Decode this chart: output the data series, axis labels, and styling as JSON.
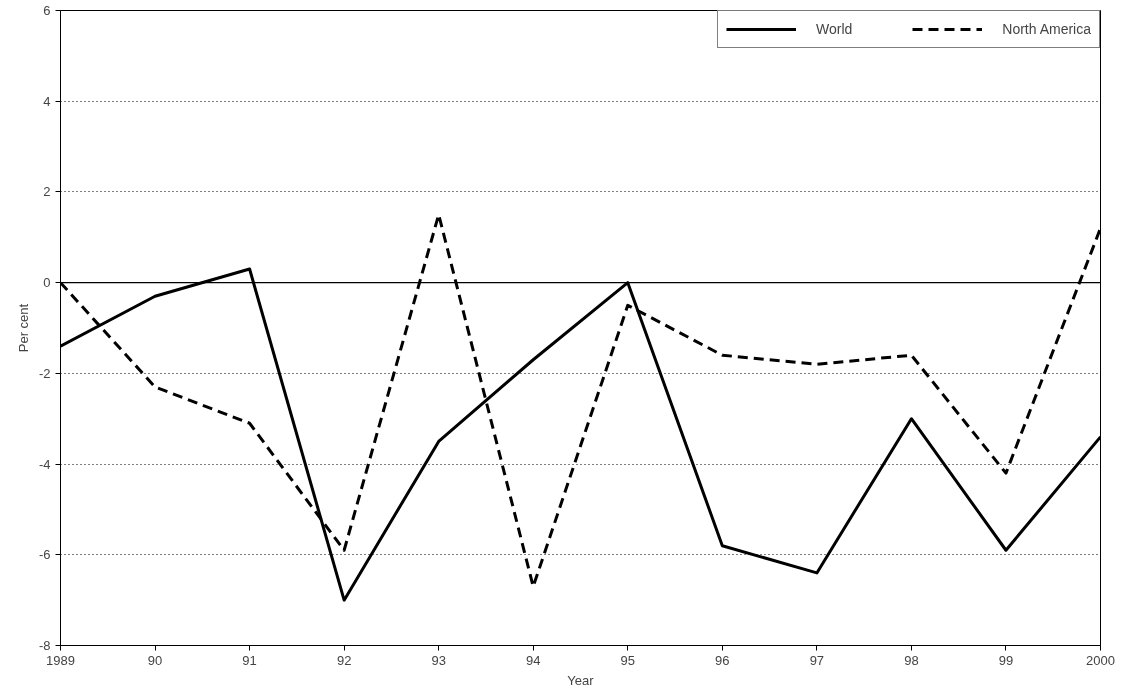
{
  "chart_data": {
    "type": "line",
    "xlabel": "Year",
    "ylabel": "Per cent",
    "x": [
      1989,
      1990,
      1991,
      1992,
      1993,
      1994,
      1995,
      1996,
      1997,
      1998,
      1999,
      2000
    ],
    "series": [
      {
        "name": "World",
        "color": "#000000",
        "line_style": "solid",
        "values": [
          -1.4,
          -0.3,
          0.3,
          -7.0,
          -3.5,
          -1.7,
          0.0,
          -5.8,
          -6.4,
          -3.0,
          -5.9,
          -3.4
        ]
      },
      {
        "name": "North America",
        "color": "#000000",
        "line_style": "dashed",
        "values": [
          0.0,
          -2.3,
          -3.1,
          -5.9,
          1.5,
          -6.7,
          -0.5,
          -1.6,
          -1.8,
          -1.6,
          -4.2,
          1.2
        ]
      }
    ],
    "xlim": [
      1989,
      2000
    ],
    "xticks": [
      1989,
      {
        "value": 1990,
        "label": "90"
      },
      {
        "value": 1991,
        "label": "91"
      },
      {
        "value": 1992,
        "label": "92"
      },
      {
        "value": 1993,
        "label": "93"
      },
      {
        "value": 1994,
        "label": "94"
      },
      {
        "value": 1995,
        "label": "95"
      },
      {
        "value": 1996,
        "label": "96"
      },
      {
        "value": 1997,
        "label": "97"
      },
      {
        "value": 1998,
        "label": "98"
      },
      {
        "value": 1999,
        "label": "99"
      },
      {
        "value": 2000,
        "label": "2000"
      }
    ],
    "ylim": [
      -8,
      6
    ],
    "yticks": [
      -8,
      -6,
      -4,
      -2,
      0,
      2,
      4,
      6
    ],
    "grid": "y",
    "legend": "top right",
    "marker": "none",
    "ref_lines": [
      {
        "axis": "y",
        "value": 0,
        "label": null,
        "color": "#000000",
        "line_style": "solid"
      }
    ]
  }
}
